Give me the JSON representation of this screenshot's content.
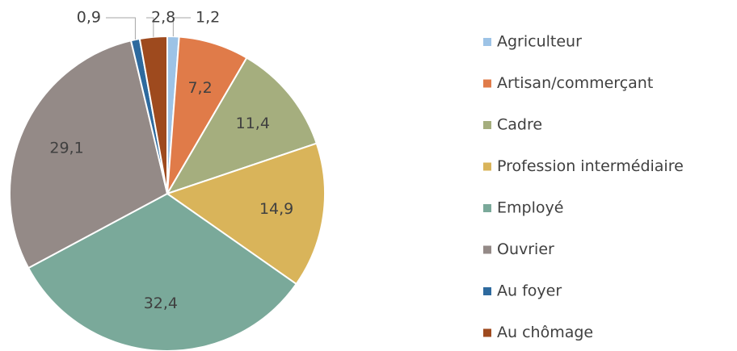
{
  "chart_data": {
    "type": "pie",
    "categories": [
      "Agriculteur",
      "Artisan/commerçant",
      "Cadre",
      "Profession intermédiaire",
      "Employé",
      "Ouvrier",
      "Au foyer",
      "Au chômage"
    ],
    "values": [
      1.2,
      7.2,
      11.4,
      14.9,
      32.4,
      29.1,
      0.9,
      2.8
    ],
    "value_labels": [
      "1,2",
      "7,2",
      "11,4",
      "14,9",
      "32,4",
      "29,1",
      "0,9",
      "2,8"
    ],
    "colors": [
      "#9dc3e6",
      "#e07b49",
      "#a5ae7e",
      "#d9b45a",
      "#7aa99a",
      "#948a87",
      "#2e6a9e",
      "#9e4a1e"
    ],
    "legend": "right"
  }
}
